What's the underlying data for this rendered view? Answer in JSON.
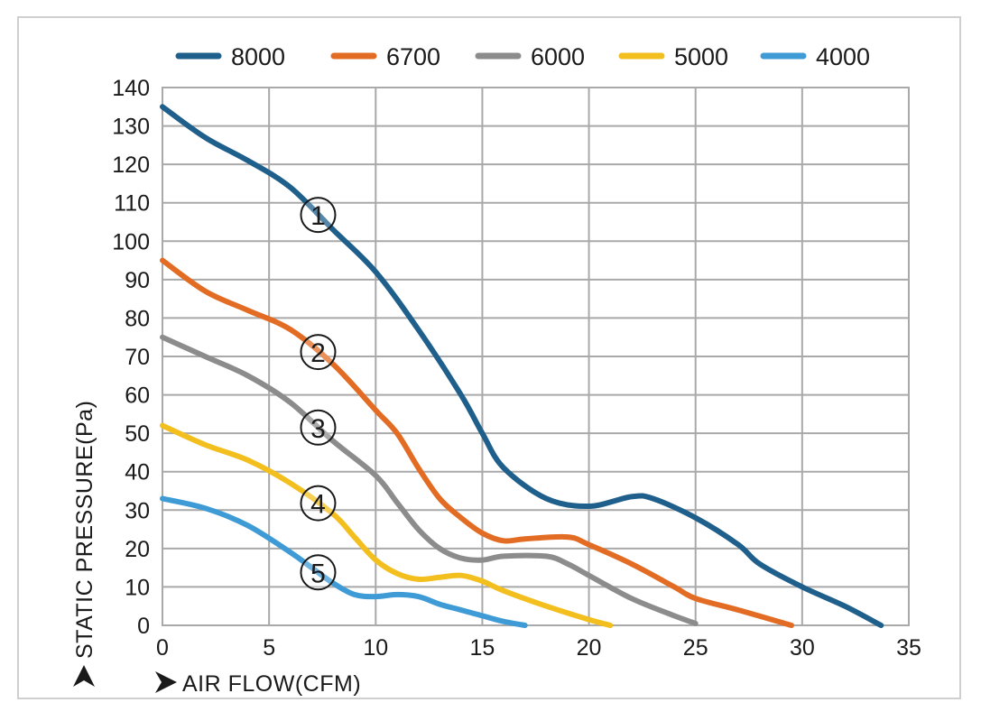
{
  "chart_data": {
    "type": "line",
    "xlabel": "AIR FLOW(CFM)",
    "ylabel": "STATIC PRESSURE(Pa)",
    "xlim": [
      0,
      35
    ],
    "ylim": [
      0,
      140
    ],
    "xticks": [
      0,
      5,
      10,
      15,
      20,
      25,
      30,
      35
    ],
    "yticks": [
      0,
      10,
      20,
      30,
      40,
      50,
      60,
      70,
      80,
      90,
      100,
      110,
      120,
      130,
      140
    ],
    "grid": true,
    "legend_position": "top",
    "series": [
      {
        "name": "8000",
        "color": "#1f5f8b",
        "marker": "①",
        "points": [
          [
            0,
            135
          ],
          [
            2,
            127
          ],
          [
            4,
            121
          ],
          [
            6,
            114
          ],
          [
            8,
            103
          ],
          [
            10,
            92
          ],
          [
            12,
            77
          ],
          [
            14,
            60
          ],
          [
            15,
            50
          ],
          [
            16,
            41
          ],
          [
            18,
            33
          ],
          [
            20,
            31
          ],
          [
            22,
            33.5
          ],
          [
            23,
            33
          ],
          [
            25,
            28
          ],
          [
            27,
            21
          ],
          [
            28,
            16
          ],
          [
            30,
            10
          ],
          [
            32,
            5
          ],
          [
            33.7,
            0
          ]
        ]
      },
      {
        "name": "6700",
        "color": "#e36c24",
        "marker": "②",
        "points": [
          [
            0,
            95
          ],
          [
            2,
            87
          ],
          [
            4,
            82
          ],
          [
            6,
            77
          ],
          [
            8,
            68
          ],
          [
            10,
            56
          ],
          [
            11,
            50
          ],
          [
            12,
            41
          ],
          [
            13,
            33
          ],
          [
            14,
            28
          ],
          [
            15,
            24
          ],
          [
            16,
            22
          ],
          [
            17,
            22.5
          ],
          [
            19,
            23
          ],
          [
            20,
            21
          ],
          [
            22,
            16
          ],
          [
            24,
            10
          ],
          [
            25,
            7
          ],
          [
            27,
            4
          ],
          [
            29.5,
            0
          ]
        ]
      },
      {
        "name": "6000",
        "color": "#8c8c8c",
        "marker": "③",
        "points": [
          [
            0,
            75
          ],
          [
            2,
            70
          ],
          [
            4,
            65
          ],
          [
            6,
            58
          ],
          [
            8,
            48
          ],
          [
            10,
            39
          ],
          [
            11,
            32
          ],
          [
            12,
            25
          ],
          [
            13,
            20
          ],
          [
            14,
            17.5
          ],
          [
            15,
            17
          ],
          [
            16,
            18
          ],
          [
            18,
            18
          ],
          [
            19,
            16
          ],
          [
            20,
            13
          ],
          [
            22,
            7
          ],
          [
            24,
            2.5
          ],
          [
            25,
            0.5
          ]
        ]
      },
      {
        "name": "5000",
        "color": "#f2bf1e",
        "marker": "④",
        "points": [
          [
            0,
            52
          ],
          [
            2,
            47
          ],
          [
            4,
            43
          ],
          [
            6,
            37
          ],
          [
            8,
            29
          ],
          [
            9,
            23
          ],
          [
            10,
            17
          ],
          [
            11,
            13.5
          ],
          [
            12,
            12
          ],
          [
            13,
            12.5
          ],
          [
            14,
            13
          ],
          [
            15,
            11.5
          ],
          [
            16,
            9
          ],
          [
            18,
            5
          ],
          [
            20,
            1.5
          ],
          [
            21,
            0
          ]
        ]
      },
      {
        "name": "4000",
        "color": "#3f9bd6",
        "marker": "⑤",
        "points": [
          [
            0,
            33
          ],
          [
            2,
            30.5
          ],
          [
            4,
            26
          ],
          [
            6,
            19
          ],
          [
            7,
            15
          ],
          [
            8,
            11
          ],
          [
            9,
            8
          ],
          [
            10,
            7.5
          ],
          [
            11,
            8
          ],
          [
            12,
            7.5
          ],
          [
            13,
            5.5
          ],
          [
            14,
            4
          ],
          [
            15,
            2.5
          ],
          [
            16,
            1
          ],
          [
            17,
            0
          ]
        ]
      }
    ]
  }
}
